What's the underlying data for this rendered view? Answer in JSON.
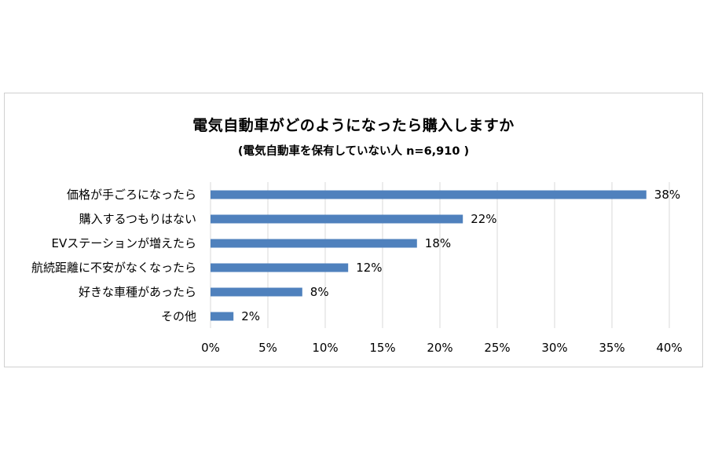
{
  "chart_data": {
    "type": "bar",
    "orientation": "horizontal",
    "title": "電気自動車がどのようになったら購入しますか",
    "subtitle": "(電気自動車を保有していない人 n=6,910 )",
    "categories": [
      "価格が手ごろになったら",
      "購入するつもりはない",
      "EVステーションが増えたら",
      "航続距離に不安がなくなったら",
      "好きな車種があったら",
      "その他"
    ],
    "values": [
      38,
      22,
      18,
      12,
      8,
      2
    ],
    "value_labels": [
      "38%",
      "22%",
      "18%",
      "12%",
      "8%",
      "2%"
    ],
    "xlim": [
      0,
      40
    ],
    "x_ticks": [
      0,
      5,
      10,
      15,
      20,
      25,
      30,
      35,
      40
    ],
    "x_tick_labels": [
      "0%",
      "5%",
      "10%",
      "15%",
      "20%",
      "25%",
      "30%",
      "35%",
      "40%"
    ],
    "grid": "vertical",
    "legend": "none",
    "colors": {
      "bar": "#4f81bd",
      "grid": "#d9d9d9",
      "border": "#d0d0d0"
    }
  }
}
